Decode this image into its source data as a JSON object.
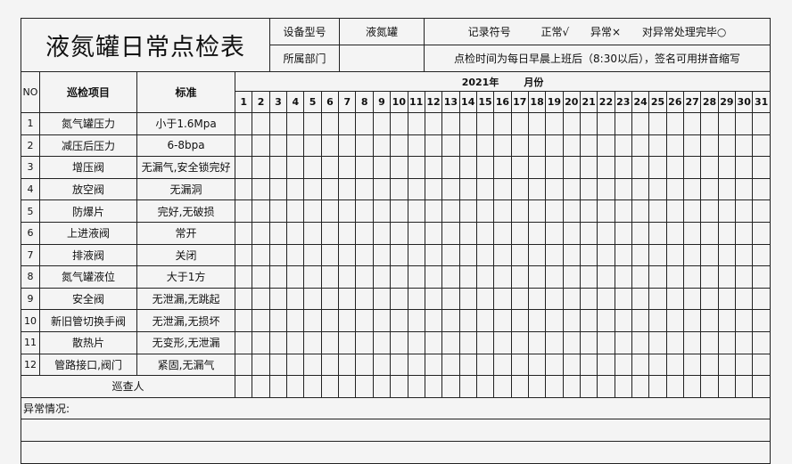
{
  "title": "液氮罐日常点检表",
  "header": {
    "device_model_label": "设备型号",
    "device_model_value": "液氮罐",
    "department_label": "所属部门",
    "department_value": "",
    "record_symbol_label": "记录符号",
    "normal_label": "正常",
    "normal_symbol": "√",
    "abnormal_label": "异常",
    "abnormal_symbol": "×",
    "handled_label": "对异常处理完毕",
    "handled_symbol": "○",
    "note": "点检时间为每日早晨上班后（8:30以后），签名可用拼音缩写"
  },
  "columns": {
    "no": "NO",
    "item": "巡检项目",
    "standard": "标准",
    "year": "2021年",
    "month": "月份"
  },
  "days": [
    "1",
    "2",
    "3",
    "4",
    "5",
    "6",
    "7",
    "8",
    "9",
    "10",
    "11",
    "12",
    "13",
    "14",
    "15",
    "16",
    "17",
    "18",
    "19",
    "20",
    "21",
    "22",
    "23",
    "24",
    "25",
    "26",
    "27",
    "28",
    "29",
    "30",
    "31"
  ],
  "rows": [
    {
      "no": "1",
      "item": "氮气罐压力",
      "standard": "小于1.6Mpa"
    },
    {
      "no": "2",
      "item": "减压后压力",
      "standard": "6-8bpa"
    },
    {
      "no": "3",
      "item": "增压阀",
      "standard": "无漏气,安全锁完好"
    },
    {
      "no": "4",
      "item": "放空阀",
      "standard": "无漏洞"
    },
    {
      "no": "5",
      "item": "防爆片",
      "standard": "完好,无破损"
    },
    {
      "no": "6",
      "item": "上进液阀",
      "standard": "常开"
    },
    {
      "no": "7",
      "item": "排液阀",
      "standard": "关闭"
    },
    {
      "no": "8",
      "item": "氮气罐液位",
      "standard": "大于1方"
    },
    {
      "no": "9",
      "item": "安全阀",
      "standard": "无泄漏,无跳起"
    },
    {
      "no": "10",
      "item": "新旧管切换手阀",
      "standard": "无泄漏,无损坏"
    },
    {
      "no": "11",
      "item": "散热片",
      "standard": "无变形,无泄漏"
    },
    {
      "no": "12",
      "item": "管路接口,阀门",
      "standard": "紧固,无漏气"
    }
  ],
  "inspector_label": "巡查人",
  "abnormal_situation_label": "异常情况:"
}
